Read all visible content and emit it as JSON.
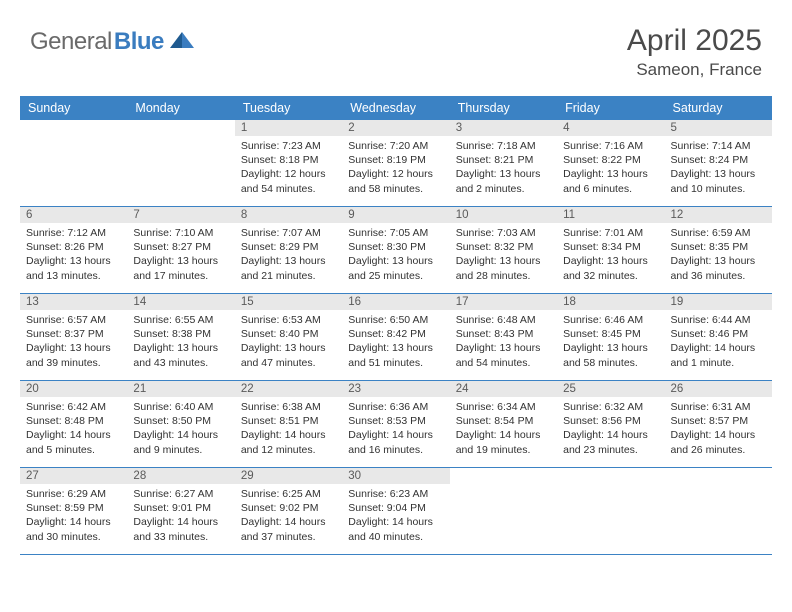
{
  "brand": {
    "text_gray": "General",
    "text_blue": "Blue"
  },
  "title": "April 2025",
  "location": "Sameon, France",
  "colors": {
    "header_bg": "#3b82c4",
    "header_text": "#ffffff",
    "daynum_bg": "#e8e8e8",
    "daynum_text": "#5a5a5a",
    "body_text": "#323232",
    "border": "#3b82c4"
  },
  "day_headers": [
    "Sunday",
    "Monday",
    "Tuesday",
    "Wednesday",
    "Thursday",
    "Friday",
    "Saturday"
  ],
  "weeks": [
    [
      {
        "empty": true
      },
      {
        "empty": true
      },
      {
        "num": "1",
        "sunrise": "7:23 AM",
        "sunset": "8:18 PM",
        "daylight": "12 hours and 54 minutes."
      },
      {
        "num": "2",
        "sunrise": "7:20 AM",
        "sunset": "8:19 PM",
        "daylight": "12 hours and 58 minutes."
      },
      {
        "num": "3",
        "sunrise": "7:18 AM",
        "sunset": "8:21 PM",
        "daylight": "13 hours and 2 minutes."
      },
      {
        "num": "4",
        "sunrise": "7:16 AM",
        "sunset": "8:22 PM",
        "daylight": "13 hours and 6 minutes."
      },
      {
        "num": "5",
        "sunrise": "7:14 AM",
        "sunset": "8:24 PM",
        "daylight": "13 hours and 10 minutes."
      }
    ],
    [
      {
        "num": "6",
        "sunrise": "7:12 AM",
        "sunset": "8:26 PM",
        "daylight": "13 hours and 13 minutes."
      },
      {
        "num": "7",
        "sunrise": "7:10 AM",
        "sunset": "8:27 PM",
        "daylight": "13 hours and 17 minutes."
      },
      {
        "num": "8",
        "sunrise": "7:07 AM",
        "sunset": "8:29 PM",
        "daylight": "13 hours and 21 minutes."
      },
      {
        "num": "9",
        "sunrise": "7:05 AM",
        "sunset": "8:30 PM",
        "daylight": "13 hours and 25 minutes."
      },
      {
        "num": "10",
        "sunrise": "7:03 AM",
        "sunset": "8:32 PM",
        "daylight": "13 hours and 28 minutes."
      },
      {
        "num": "11",
        "sunrise": "7:01 AM",
        "sunset": "8:34 PM",
        "daylight": "13 hours and 32 minutes."
      },
      {
        "num": "12",
        "sunrise": "6:59 AM",
        "sunset": "8:35 PM",
        "daylight": "13 hours and 36 minutes."
      }
    ],
    [
      {
        "num": "13",
        "sunrise": "6:57 AM",
        "sunset": "8:37 PM",
        "daylight": "13 hours and 39 minutes."
      },
      {
        "num": "14",
        "sunrise": "6:55 AM",
        "sunset": "8:38 PM",
        "daylight": "13 hours and 43 minutes."
      },
      {
        "num": "15",
        "sunrise": "6:53 AM",
        "sunset": "8:40 PM",
        "daylight": "13 hours and 47 minutes."
      },
      {
        "num": "16",
        "sunrise": "6:50 AM",
        "sunset": "8:42 PM",
        "daylight": "13 hours and 51 minutes."
      },
      {
        "num": "17",
        "sunrise": "6:48 AM",
        "sunset": "8:43 PM",
        "daylight": "13 hours and 54 minutes."
      },
      {
        "num": "18",
        "sunrise": "6:46 AM",
        "sunset": "8:45 PM",
        "daylight": "13 hours and 58 minutes."
      },
      {
        "num": "19",
        "sunrise": "6:44 AM",
        "sunset": "8:46 PM",
        "daylight": "14 hours and 1 minute."
      }
    ],
    [
      {
        "num": "20",
        "sunrise": "6:42 AM",
        "sunset": "8:48 PM",
        "daylight": "14 hours and 5 minutes."
      },
      {
        "num": "21",
        "sunrise": "6:40 AM",
        "sunset": "8:50 PM",
        "daylight": "14 hours and 9 minutes."
      },
      {
        "num": "22",
        "sunrise": "6:38 AM",
        "sunset": "8:51 PM",
        "daylight": "14 hours and 12 minutes."
      },
      {
        "num": "23",
        "sunrise": "6:36 AM",
        "sunset": "8:53 PM",
        "daylight": "14 hours and 16 minutes."
      },
      {
        "num": "24",
        "sunrise": "6:34 AM",
        "sunset": "8:54 PM",
        "daylight": "14 hours and 19 minutes."
      },
      {
        "num": "25",
        "sunrise": "6:32 AM",
        "sunset": "8:56 PM",
        "daylight": "14 hours and 23 minutes."
      },
      {
        "num": "26",
        "sunrise": "6:31 AM",
        "sunset": "8:57 PM",
        "daylight": "14 hours and 26 minutes."
      }
    ],
    [
      {
        "num": "27",
        "sunrise": "6:29 AM",
        "sunset": "8:59 PM",
        "daylight": "14 hours and 30 minutes."
      },
      {
        "num": "28",
        "sunrise": "6:27 AM",
        "sunset": "9:01 PM",
        "daylight": "14 hours and 33 minutes."
      },
      {
        "num": "29",
        "sunrise": "6:25 AM",
        "sunset": "9:02 PM",
        "daylight": "14 hours and 37 minutes."
      },
      {
        "num": "30",
        "sunrise": "6:23 AM",
        "sunset": "9:04 PM",
        "daylight": "14 hours and 40 minutes."
      },
      {
        "empty": true
      },
      {
        "empty": true
      },
      {
        "empty": true
      }
    ]
  ],
  "labels": {
    "sunrise_prefix": "Sunrise: ",
    "sunset_prefix": "Sunset: ",
    "daylight_prefix": "Daylight: "
  }
}
